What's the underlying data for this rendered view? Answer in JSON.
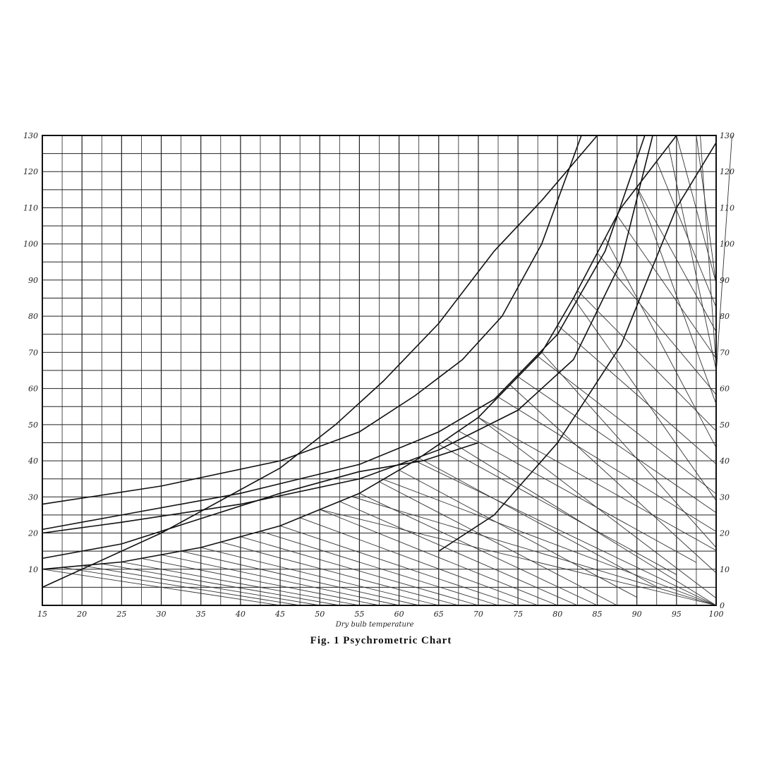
{
  "chart_data": {
    "type": "line",
    "title": "Fig. 1 Psychrometric Chart",
    "xlabel": "Dry bulb temperature",
    "ylabel_left": "",
    "ylabel_right": "",
    "xlim": [
      15,
      100
    ],
    "x_ticks": [
      15,
      20,
      25,
      30,
      35,
      40,
      45,
      50,
      55,
      60,
      65,
      70,
      75,
      80,
      85,
      90,
      95,
      100
    ],
    "x_tick_labels": [
      "15",
      "20",
      "25",
      "30",
      "35",
      "40",
      "45",
      "50",
      "55",
      "60",
      "65",
      "70",
      "75",
      "80",
      "85",
      "90",
      "95",
      "100"
    ],
    "ylim": [
      0,
      130
    ],
    "y_ticks_left": [
      10,
      20,
      30,
      40,
      50,
      60,
      70,
      80,
      90,
      100,
      110,
      120,
      130
    ],
    "y_tick_labels_left": [
      "10",
      "20",
      "30",
      "40",
      "50",
      "60",
      "70",
      "80",
      "90",
      "100",
      "110",
      "120",
      "130"
    ],
    "y_ticks_right": [
      0,
      10,
      20,
      30,
      40,
      50,
      60,
      70,
      80,
      90,
      100,
      110,
      120,
      130
    ],
    "y_tick_labels_right": [
      "0",
      "10",
      "20",
      "30",
      "40",
      "50",
      "60",
      "70",
      "80",
      "90",
      "100",
      "110",
      "120",
      "130"
    ],
    "grid": true,
    "series": [
      {
        "x": [
          15,
          25,
          35,
          45,
          55,
          62,
          70,
          78,
          82,
          88,
          95
        ],
        "y": [
          10,
          12,
          16,
          22,
          31,
          40,
          52,
          70,
          85,
          110,
          130
        ]
      },
      {
        "x": [
          15,
          30,
          45,
          55,
          62,
          68,
          73,
          78,
          83
        ],
        "y": [
          28,
          33,
          40,
          48,
          58,
          68,
          80,
          100,
          130
        ]
      },
      {
        "x": [
          15,
          30,
          45,
          52,
          58,
          65,
          72,
          78,
          85
        ],
        "y": [
          5,
          20,
          38,
          50,
          62,
          78,
          98,
          112,
          130
        ]
      },
      {
        "x": [
          15,
          25,
          40,
          55,
          65,
          72,
          80,
          86,
          91
        ],
        "y": [
          21,
          25,
          31,
          39,
          48,
          57,
          75,
          98,
          130
        ]
      },
      {
        "x": [
          15,
          25,
          40,
          55,
          65,
          75,
          82,
          88,
          92
        ],
        "y": [
          20,
          23,
          28,
          35,
          43,
          54,
          68,
          95,
          130
        ]
      },
      {
        "x": [
          15,
          25,
          35,
          45,
          55,
          63,
          70
        ],
        "y": [
          13,
          17,
          24,
          31,
          37,
          40,
          45
        ]
      },
      {
        "x": [
          65,
          72,
          80,
          88,
          95,
          100
        ],
        "y": [
          15,
          25,
          45,
          72,
          110,
          128
        ]
      }
    ],
    "annotations": [
      "Dry bulb temperature"
    ]
  },
  "caption": "Fig. 1 Psychrometric Chart"
}
